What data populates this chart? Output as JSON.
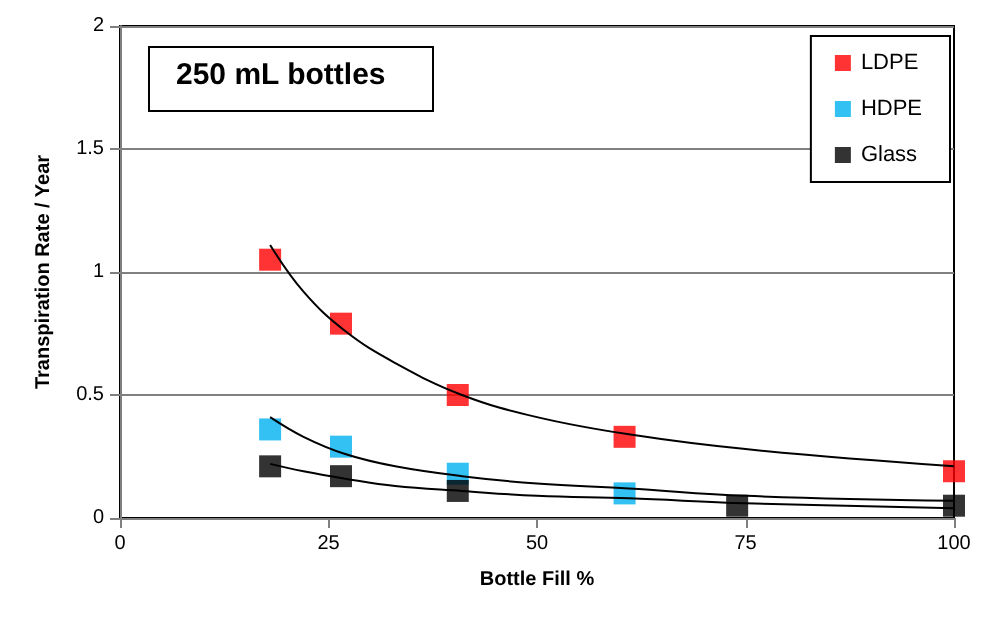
{
  "chart_data": {
    "type": "scatter",
    "title": "250 mL bottles",
    "xlabel": "Bottle Fill %",
    "ylabel": "Transpiration Rate / Year",
    "xlim": [
      0,
      100
    ],
    "xticks": [
      0,
      25,
      50,
      75,
      100
    ],
    "ylim": [
      0,
      2
    ],
    "yticks": [
      0,
      0.5,
      1,
      1.5,
      2
    ],
    "grid": "y",
    "legend": "top right",
    "marker": "square",
    "series": [
      {
        "name": "LDPE",
        "color": "#ff0000",
        "x": [
          18,
          26.5,
          40.5,
          60.5,
          100
        ],
        "values": [
          1.05,
          0.79,
          0.5,
          0.33,
          0.19
        ]
      },
      {
        "name": "HDPE",
        "color": "#00b0f0",
        "x": [
          18,
          26.5,
          40.5,
          60.5
        ],
        "values": [
          0.36,
          0.29,
          0.18,
          0.1
        ]
      },
      {
        "name": "Glass",
        "color": "#000000",
        "x": [
          18,
          26.5,
          40.5,
          74,
          100
        ],
        "values": [
          0.21,
          0.17,
          0.11,
          0.05,
          0.05
        ]
      },
      {
        "type": "line",
        "color": "#000000",
        "marker": "none",
        "x": [
          18,
          22,
          27,
          33,
          41,
          50,
          61,
          75,
          100
        ],
        "values": [
          1.11,
          0.92,
          0.76,
          0.63,
          0.5,
          0.41,
          0.34,
          0.28,
          0.21
        ]
      },
      {
        "type": "line",
        "color": "#000000",
        "marker": "none",
        "x": [
          18,
          22,
          27,
          33,
          41,
          50,
          61,
          75,
          100
        ],
        "values": [
          0.41,
          0.33,
          0.26,
          0.21,
          0.17,
          0.14,
          0.12,
          0.09,
          0.07
        ]
      },
      {
        "type": "line",
        "color": "#000000",
        "marker": "none",
        "x": [
          18,
          22,
          27,
          33,
          41,
          50,
          61,
          75,
          100
        ],
        "values": [
          0.22,
          0.19,
          0.16,
          0.13,
          0.11,
          0.09,
          0.08,
          0.06,
          0.04
        ]
      }
    ]
  }
}
